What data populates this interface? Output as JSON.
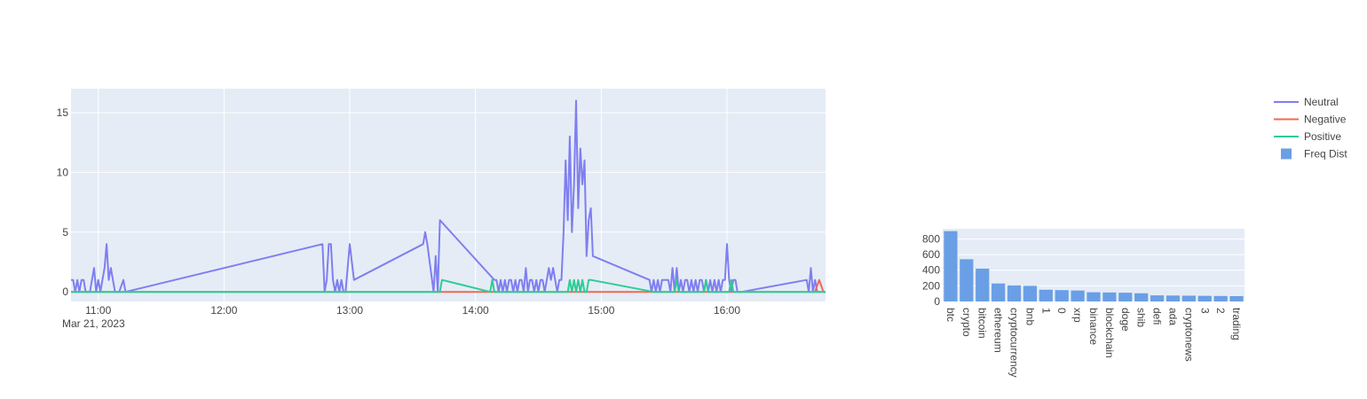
{
  "colors": {
    "neutral": "#7f7ff0",
    "negative": "#ef6a4f",
    "positive": "#2ecc96",
    "bars": "#6a9fe6",
    "plot_bg": "#e5ecf6",
    "grid": "#ffffff",
    "text": "#444444"
  },
  "legend": [
    {
      "label": "Neutral",
      "kind": "line",
      "color_key": "neutral"
    },
    {
      "label": "Negative",
      "kind": "line",
      "color_key": "negative"
    },
    {
      "label": "Positive",
      "kind": "line",
      "color_key": "positive"
    },
    {
      "label": "Freq Dist",
      "kind": "bar",
      "color_key": "bars"
    }
  ],
  "chart_data": [
    {
      "type": "line",
      "x_axis": {
        "type": "time",
        "range": [
          "10:47",
          "16:47"
        ],
        "ticks": [
          "11:00",
          "12:00",
          "13:00",
          "14:00",
          "15:00",
          "16:00"
        ],
        "date_label": "Mar 21, 2023"
      },
      "y_axis": {
        "range": [
          -0.8,
          17
        ],
        "ticks": [
          0,
          5,
          10,
          15
        ]
      },
      "grid": true,
      "legend_placement": "top-right",
      "series": [
        {
          "name": "Neutral",
          "color_key": "neutral",
          "points": [
            [
              "10:47",
              1
            ],
            [
              "10:48",
              1
            ],
            [
              "10:49",
              0
            ],
            [
              "10:50",
              1
            ],
            [
              "10:51",
              0
            ],
            [
              "10:52",
              1
            ],
            [
              "10:53",
              1
            ],
            [
              "10:54",
              0
            ],
            [
              "10:56",
              0
            ],
            [
              "10:57",
              1
            ],
            [
              "10:58",
              2
            ],
            [
              "10:59",
              0
            ],
            [
              "11:00",
              1
            ],
            [
              "11:01",
              0
            ],
            [
              "11:02",
              1
            ],
            [
              "11:03",
              2
            ],
            [
              "11:04",
              4
            ],
            [
              "11:05",
              1
            ],
            [
              "11:06",
              2
            ],
            [
              "11:07",
              1
            ],
            [
              "11:08",
              0
            ],
            [
              "11:10",
              0
            ],
            [
              "11:12",
              1
            ],
            [
              "11:13",
              0
            ],
            [
              "12:47",
              4
            ],
            [
              "12:48",
              0
            ],
            [
              "12:49",
              1
            ],
            [
              "12:50",
              4
            ],
            [
              "12:51",
              4
            ],
            [
              "12:52",
              1
            ],
            [
              "12:53",
              0
            ],
            [
              "12:54",
              1
            ],
            [
              "12:55",
              0
            ],
            [
              "12:56",
              1
            ],
            [
              "12:57",
              0
            ],
            [
              "12:58",
              0
            ],
            [
              "13:00",
              4
            ],
            [
              "13:02",
              1
            ],
            [
              "13:35",
              4
            ],
            [
              "13:36",
              5
            ],
            [
              "13:37",
              4
            ],
            [
              "13:40",
              0
            ],
            [
              "13:41",
              3
            ],
            [
              "13:42",
              0
            ],
            [
              "13:43",
              6
            ],
            [
              "14:09",
              1
            ],
            [
              "14:10",
              1
            ],
            [
              "14:11",
              0
            ],
            [
              "14:12",
              1
            ],
            [
              "14:13",
              0
            ],
            [
              "14:14",
              1
            ],
            [
              "14:15",
              0
            ],
            [
              "14:16",
              1
            ],
            [
              "14:17",
              1
            ],
            [
              "14:18",
              0
            ],
            [
              "14:19",
              1
            ],
            [
              "14:20",
              0
            ],
            [
              "14:21",
              1
            ],
            [
              "14:22",
              1
            ],
            [
              "14:23",
              0
            ],
            [
              "14:24",
              2
            ],
            [
              "14:25",
              0
            ],
            [
              "14:26",
              1
            ],
            [
              "14:27",
              1
            ],
            [
              "14:28",
              0
            ],
            [
              "14:29",
              1
            ],
            [
              "14:30",
              0
            ],
            [
              "14:31",
              1
            ],
            [
              "14:32",
              1
            ],
            [
              "14:33",
              0
            ],
            [
              "14:34",
              1
            ],
            [
              "14:35",
              2
            ],
            [
              "14:36",
              1
            ],
            [
              "14:37",
              2
            ],
            [
              "14:38",
              1
            ],
            [
              "14:39",
              0
            ],
            [
              "14:40",
              1
            ],
            [
              "14:41",
              1
            ],
            [
              "14:42",
              5
            ],
            [
              "14:43",
              11
            ],
            [
              "14:44",
              6
            ],
            [
              "14:45",
              13
            ],
            [
              "14:46",
              5
            ],
            [
              "14:47",
              9
            ],
            [
              "14:48",
              16
            ],
            [
              "14:49",
              7
            ],
            [
              "14:50",
              12
            ],
            [
              "14:51",
              9
            ],
            [
              "14:52",
              11
            ],
            [
              "14:53",
              3
            ],
            [
              "14:54",
              6
            ],
            [
              "14:55",
              7
            ],
            [
              "14:56",
              3
            ],
            [
              "15:23",
              1
            ],
            [
              "15:24",
              0
            ],
            [
              "15:25",
              1
            ],
            [
              "15:26",
              0
            ],
            [
              "15:27",
              1
            ],
            [
              "15:28",
              0
            ],
            [
              "15:29",
              1
            ],
            [
              "15:30",
              1
            ],
            [
              "15:31",
              1
            ],
            [
              "15:32",
              1
            ],
            [
              "15:33",
              0
            ],
            [
              "15:34",
              2
            ],
            [
              "15:35",
              0
            ],
            [
              "15:36",
              2
            ],
            [
              "15:37",
              0
            ],
            [
              "15:38",
              1
            ],
            [
              "15:39",
              0
            ],
            [
              "15:40",
              1
            ],
            [
              "15:41",
              1
            ],
            [
              "15:42",
              0
            ],
            [
              "15:43",
              1
            ],
            [
              "15:44",
              0
            ],
            [
              "15:45",
              1
            ],
            [
              "15:46",
              0
            ],
            [
              "15:47",
              1
            ],
            [
              "15:48",
              1
            ],
            [
              "15:49",
              0
            ],
            [
              "15:50",
              1
            ],
            [
              "15:51",
              0
            ],
            [
              "15:52",
              1
            ],
            [
              "15:53",
              0
            ],
            [
              "15:54",
              1
            ],
            [
              "15:55",
              0
            ],
            [
              "15:56",
              1
            ],
            [
              "15:57",
              0
            ],
            [
              "15:58",
              1
            ],
            [
              "15:59",
              1
            ],
            [
              "16:00",
              4
            ],
            [
              "16:01",
              1
            ],
            [
              "16:02",
              0
            ],
            [
              "16:03",
              1
            ],
            [
              "16:04",
              1
            ],
            [
              "16:05",
              0
            ],
            [
              "16:07",
              0
            ],
            [
              "16:38",
              1
            ],
            [
              "16:39",
              0
            ],
            [
              "16:40",
              2
            ],
            [
              "16:41",
              0
            ],
            [
              "16:42",
              1
            ],
            [
              "16:43",
              0
            ],
            [
              "16:45",
              0
            ],
            [
              "16:47",
              0
            ]
          ]
        },
        {
          "name": "Negative",
          "color_key": "negative",
          "points": [
            [
              "10:47",
              0
            ],
            [
              "16:42",
              0
            ],
            [
              "16:44",
              1
            ],
            [
              "16:46",
              0
            ],
            [
              "16:47",
              0
            ]
          ]
        },
        {
          "name": "Positive",
          "color_key": "positive",
          "points": [
            [
              "10:47",
              0
            ],
            [
              "13:43",
              0
            ],
            [
              "13:44",
              1
            ],
            [
              "14:07",
              0
            ],
            [
              "14:08",
              1
            ],
            [
              "14:09",
              0
            ],
            [
              "14:44",
              0
            ],
            [
              "14:45",
              1
            ],
            [
              "14:46",
              0
            ],
            [
              "14:47",
              1
            ],
            [
              "14:48",
              0
            ],
            [
              "14:49",
              1
            ],
            [
              "14:50",
              0
            ],
            [
              "14:51",
              1
            ],
            [
              "14:52",
              0
            ],
            [
              "14:53",
              0
            ],
            [
              "14:54",
              1
            ],
            [
              "14:55",
              1
            ],
            [
              "15:25",
              0
            ],
            [
              "15:35",
              0
            ],
            [
              "15:36",
              1
            ],
            [
              "15:37",
              0
            ],
            [
              "15:49",
              0
            ],
            [
              "15:50",
              1
            ],
            [
              "15:51",
              0
            ],
            [
              "16:01",
              0
            ],
            [
              "16:02",
              1
            ],
            [
              "16:03",
              0
            ],
            [
              "16:47",
              0
            ]
          ]
        }
      ]
    },
    {
      "type": "bar",
      "series_name": "Freq Dist",
      "color_key": "bars",
      "categories": [
        "btc",
        "crypto",
        "bitcoin",
        "ethereum",
        "cryptocurrency",
        "bnb",
        "1",
        "0",
        "xrp",
        "binance",
        "blockchain",
        "doge",
        "shib",
        "defi",
        "ada",
        "cryptonews",
        "3",
        "2",
        "trading"
      ],
      "values": [
        900,
        540,
        420,
        230,
        205,
        200,
        150,
        145,
        140,
        118,
        115,
        112,
        105,
        78,
        76,
        74,
        72,
        70,
        68
      ],
      "y_axis": {
        "range": [
          0,
          900
        ],
        "ticks": [
          0,
          200,
          400,
          600,
          800
        ]
      },
      "grid": true
    }
  ]
}
